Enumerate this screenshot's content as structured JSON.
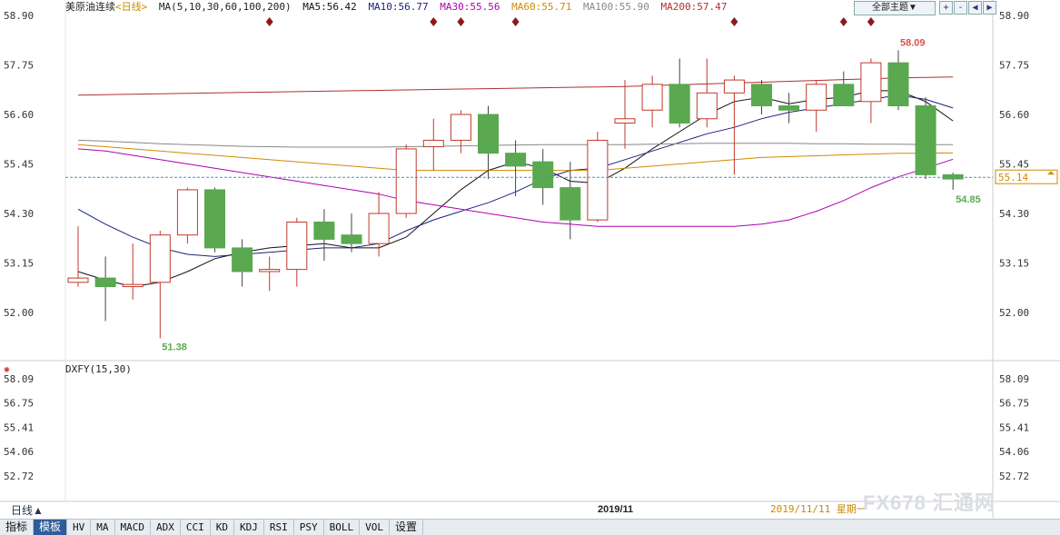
{
  "legend": {
    "name": "美原油连续",
    "period": "<日线>",
    "ma_params": "MA(5,10,30,60,100,200)",
    "ma5": "MA5:56.42",
    "ma10": "MA10:56.77",
    "ma30": "MA30:55.56",
    "ma60": "MA60:55.71",
    "ma100": "MA100:55.90",
    "ma200": "MA200:57.47"
  },
  "toolbar": {
    "theme_label": "全部主题▼",
    "tools": [
      "+",
      "-",
      "◀",
      "▶"
    ]
  },
  "indicator": {
    "label": "DXFY(15,30)"
  },
  "bottom": {
    "period_select": "日线▲",
    "date_label": "2019/11",
    "date_readout": "2019/11/11 星期一",
    "watermark": "FX678 汇通网"
  },
  "tabs": [
    "指标",
    "模板",
    "HV",
    "MA",
    "MACD",
    "ADX",
    "CCI",
    "KD",
    "KDJ",
    "RSI",
    "PSY",
    "BOLL",
    "VOL",
    "设置"
  ],
  "colors": {
    "up": "#c0392b",
    "down": "#5aa84f",
    "ma5": "#111111",
    "ma10": "#1a237e",
    "ma30": "#b000b0",
    "ma60": "#d08a00",
    "ma100": "#888888",
    "ma200": "#b03030",
    "last_price": "#4a90c8"
  },
  "chart_data": {
    "type": "candlestick",
    "main_axis": {
      "ylim": [
        51.2,
        59.1
      ],
      "ticks": [
        "58.90",
        "57.75",
        "56.60",
        "55.45",
        "54.30",
        "53.15",
        "52.00"
      ]
    },
    "sub_axis": {
      "ticks": [
        "58.09",
        "56.75",
        "55.41",
        "54.06",
        "52.72"
      ]
    },
    "last_price": "55.14",
    "high_label": "58.09",
    "low_label": "51.38",
    "last_low_label": "54.85",
    "markers": [
      7,
      13,
      14,
      16,
      24,
      28,
      29
    ],
    "candles": [
      {
        "o": 52.7,
        "h": 54.0,
        "l": 52.6,
        "c": 52.8
      },
      {
        "o": 52.8,
        "h": 53.3,
        "l": 51.8,
        "c": 52.6
      },
      {
        "o": 52.6,
        "h": 53.6,
        "l": 52.3,
        "c": 52.65
      },
      {
        "o": 52.7,
        "h": 53.9,
        "l": 51.4,
        "c": 53.8
      },
      {
        "o": 53.8,
        "h": 54.9,
        "l": 53.6,
        "c": 54.85
      },
      {
        "o": 54.85,
        "h": 54.9,
        "l": 53.4,
        "c": 53.5
      },
      {
        "o": 53.5,
        "h": 53.7,
        "l": 52.6,
        "c": 52.95
      },
      {
        "o": 52.95,
        "h": 53.3,
        "l": 52.5,
        "c": 53.0
      },
      {
        "o": 53.0,
        "h": 54.2,
        "l": 52.6,
        "c": 54.1
      },
      {
        "o": 54.1,
        "h": 54.4,
        "l": 53.2,
        "c": 53.7
      },
      {
        "o": 53.8,
        "h": 54.3,
        "l": 53.4,
        "c": 53.6
      },
      {
        "o": 53.6,
        "h": 54.8,
        "l": 53.3,
        "c": 54.3
      },
      {
        "o": 54.3,
        "h": 55.9,
        "l": 54.2,
        "c": 55.8
      },
      {
        "o": 55.85,
        "h": 56.5,
        "l": 55.3,
        "c": 56.0
      },
      {
        "o": 56.0,
        "h": 56.7,
        "l": 55.7,
        "c": 56.6
      },
      {
        "o": 56.6,
        "h": 56.8,
        "l": 55.1,
        "c": 55.7
      },
      {
        "o": 55.7,
        "h": 56.0,
        "l": 54.7,
        "c": 55.4
      },
      {
        "o": 55.5,
        "h": 55.8,
        "l": 54.5,
        "c": 54.9
      },
      {
        "o": 54.9,
        "h": 55.5,
        "l": 53.7,
        "c": 54.15
      },
      {
        "o": 54.15,
        "h": 56.2,
        "l": 54.1,
        "c": 56.0
      },
      {
        "o": 56.4,
        "h": 57.4,
        "l": 55.8,
        "c": 56.5
      },
      {
        "o": 56.7,
        "h": 57.5,
        "l": 56.3,
        "c": 57.3
      },
      {
        "o": 57.3,
        "h": 57.9,
        "l": 56.3,
        "c": 56.4
      },
      {
        "o": 56.5,
        "h": 57.9,
        "l": 56.3,
        "c": 57.1
      },
      {
        "o": 57.1,
        "h": 57.5,
        "l": 55.2,
        "c": 57.4
      },
      {
        "o": 57.3,
        "h": 57.4,
        "l": 56.6,
        "c": 56.8
      },
      {
        "o": 56.8,
        "h": 57.1,
        "l": 56.4,
        "c": 56.7
      },
      {
        "o": 56.7,
        "h": 57.4,
        "l": 56.2,
        "c": 57.3
      },
      {
        "o": 57.3,
        "h": 57.6,
        "l": 56.8,
        "c": 56.8
      },
      {
        "o": 56.9,
        "h": 57.9,
        "l": 56.4,
        "c": 57.8
      },
      {
        "o": 57.8,
        "h": 58.09,
        "l": 56.7,
        "c": 56.8
      },
      {
        "o": 56.8,
        "h": 57.0,
        "l": 55.1,
        "c": 55.2
      },
      {
        "o": 55.2,
        "h": 55.25,
        "l": 54.85,
        "c": 55.1
      }
    ],
    "moving_averages": {
      "ma5": [
        52.95,
        52.75,
        52.6,
        52.7,
        52.95,
        53.25,
        53.4,
        53.5,
        53.55,
        53.6,
        53.5,
        53.5,
        53.75,
        54.3,
        54.85,
        55.3,
        55.5,
        55.35,
        55.05,
        55.0,
        55.35,
        55.8,
        56.2,
        56.6,
        56.9,
        57.0,
        56.85,
        56.95,
        57.0,
        57.15,
        57.15,
        56.9,
        56.45
      ],
      "ma10": [
        54.4,
        54.05,
        53.75,
        53.5,
        53.35,
        53.3,
        53.35,
        53.4,
        53.45,
        53.5,
        53.5,
        53.6,
        53.9,
        54.15,
        54.35,
        54.55,
        54.8,
        55.1,
        55.3,
        55.35,
        55.55,
        55.75,
        55.95,
        56.15,
        56.3,
        56.5,
        56.65,
        56.75,
        56.85,
        56.95,
        57.05,
        56.95,
        56.75
      ],
      "ma30": [
        55.8,
        55.75,
        55.65,
        55.55,
        55.45,
        55.35,
        55.25,
        55.15,
        55.05,
        54.95,
        54.85,
        54.75,
        54.6,
        54.5,
        54.4,
        54.3,
        54.2,
        54.1,
        54.05,
        54.0,
        54.0,
        54.0,
        54.0,
        54.0,
        54.0,
        54.05,
        54.15,
        54.35,
        54.6,
        54.9,
        55.15,
        55.35,
        55.56
      ],
      "ma60": [
        55.9,
        55.85,
        55.8,
        55.75,
        55.7,
        55.65,
        55.6,
        55.55,
        55.5,
        55.45,
        55.4,
        55.35,
        55.3,
        55.3,
        55.3,
        55.3,
        55.3,
        55.3,
        55.3,
        55.3,
        55.35,
        55.4,
        55.45,
        55.5,
        55.55,
        55.6,
        55.62,
        55.64,
        55.66,
        55.68,
        55.7,
        55.7,
        55.71
      ],
      "ma100": [
        56.0,
        55.98,
        55.95,
        55.92,
        55.9,
        55.88,
        55.86,
        55.85,
        55.84,
        55.84,
        55.84,
        55.84,
        55.85,
        55.86,
        55.87,
        55.88,
        55.89,
        55.9,
        55.9,
        55.9,
        55.9,
        55.91,
        55.92,
        55.93,
        55.93,
        55.93,
        55.93,
        55.92,
        55.92,
        55.91,
        55.91,
        55.9,
        55.9
      ],
      "ma200": [
        57.05,
        57.06,
        57.07,
        57.08,
        57.09,
        57.1,
        57.11,
        57.12,
        57.13,
        57.14,
        57.15,
        57.16,
        57.17,
        57.18,
        57.19,
        57.2,
        57.21,
        57.22,
        57.23,
        57.24,
        57.25,
        57.27,
        57.29,
        57.31,
        57.33,
        57.35,
        57.37,
        57.39,
        57.41,
        57.43,
        57.45,
        57.46,
        57.47
      ]
    }
  }
}
